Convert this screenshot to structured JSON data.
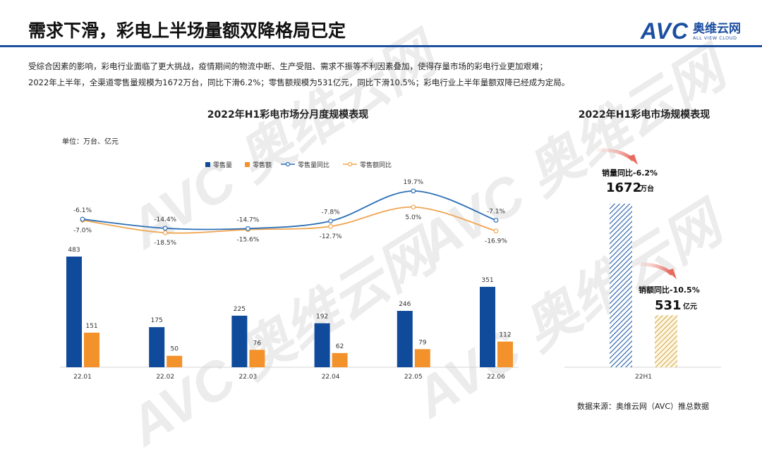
{
  "header": {
    "title": "需求下滑，彩电上半场量额双降格局已定",
    "logo_text": "AVC",
    "logo_cn": "奥维云网",
    "logo_en": "ALL VIEW CLOUD"
  },
  "description": {
    "line1": "受综合因素的影响，彩电行业面临了更大挑战，疫情期间的物流中断、生产受阻、需求不振等不利因素叠加，使得存量市场的彩电行业更加艰难；",
    "line2": "2022年上半年，全渠道零售量规模为1672万台，同比下滑6.2%；零售额规模为531亿元，同比下滑10.5%；彩电行业上半年量额双降已经成为定局。"
  },
  "watermark": {
    "text": "AVC 奥维云网",
    "sub": "ALL VIEW CLOUD"
  },
  "source": "数据来源：奥维云网（AVC）推总数据",
  "colors": {
    "brand": "#1c4fa0",
    "volume": "#0f4a9b",
    "amount": "#f3922a",
    "volume_line": "#2c6fb6",
    "amount_line": "#f0a550"
  },
  "chart_data": [
    {
      "type": "bar",
      "title": "2022年H1彩电市场分月度规模表现",
      "unit_label": "单位：万台、亿元",
      "categories": [
        "22.01",
        "22.02",
        "22.03",
        "22.04",
        "22.05",
        "22.06"
      ],
      "series": [
        {
          "name": "零售量",
          "kind": "bar",
          "values": [
            483,
            175,
            225,
            192,
            246,
            351
          ]
        },
        {
          "name": "零售额",
          "kind": "bar",
          "values": [
            151,
            50,
            76,
            62,
            79,
            112
          ]
        },
        {
          "name": "零售量同比",
          "kind": "line",
          "values": [
            -6.1,
            -14.4,
            -14.7,
            -7.8,
            19.7,
            -7.1
          ],
          "labels": [
            "-6.1%",
            "-14.4%",
            "-14.7%",
            "-7.8%",
            "19.7%",
            "-7.1%"
          ]
        },
        {
          "name": "零售额同比",
          "kind": "line",
          "values": [
            -7.0,
            -18.5,
            -15.6,
            -12.7,
            5.0,
            -16.9
          ],
          "labels": [
            "-7.0%",
            "-18.5%",
            "-15.6%",
            "-12.7%",
            "5.0%",
            "-16.9%"
          ]
        }
      ],
      "bar_labels": {
        "volume": [
          "483",
          "175",
          "225",
          "192",
          "246",
          "351"
        ],
        "amount": [
          "151",
          "50",
          "76",
          "62",
          "79",
          "112"
        ]
      },
      "ylim": [
        0,
        500
      ],
      "line_ylim": [
        -20,
        20
      ],
      "legend": "top"
    },
    {
      "type": "bar",
      "title": "2022年H1彩电市场规模表现",
      "categories": [
        "22H1"
      ],
      "series": [
        {
          "name": "零售量",
          "values": [
            1672
          ]
        },
        {
          "name": "零售额",
          "values": [
            531
          ]
        }
      ],
      "annotations": {
        "volume_yoy": "销量同比-6.2%",
        "volume_value": "1672",
        "volume_unit": "万台",
        "amount_yoy": "销额同比-10.5%",
        "amount_value": "531",
        "amount_unit": "亿元"
      }
    }
  ]
}
